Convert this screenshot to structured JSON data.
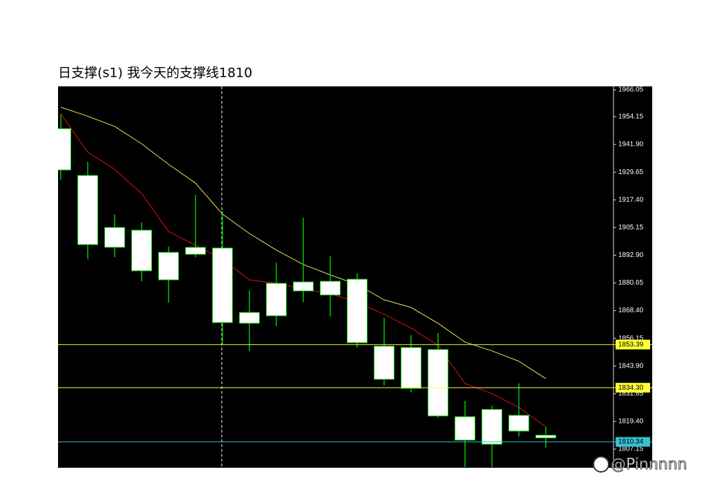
{
  "chart_data": {
    "type": "candlestick",
    "title": "日支撑(s1) 我今天的支撑线1810",
    "open": [
      1948.9,
      1928.2,
      1896.4,
      1904.0,
      1882.0,
      1893.3,
      1896.1,
      1862.8,
      1866.1,
      1877.1,
      1875.3,
      1882.3,
      1852.7,
      1852.1,
      1851.2,
      1821.5,
      1809.3,
      1822.1,
      1813.3
    ],
    "high": [
      1955.3,
      1934.3,
      1911.0,
      1907.4,
      1896.7,
      1919.6,
      1912.5,
      1877.4,
      1889.6,
      1909.5,
      1892.4,
      1885.0,
      1865.2,
      1857.6,
      1858.5,
      1828.5,
      1826.4,
      1836.2,
      1817.0
    ],
    "low": [
      1926.3,
      1891.2,
      1892.1,
      1881.4,
      1871.9,
      1892.1,
      1853.6,
      1850.5,
      1861.6,
      1872.2,
      1865.8,
      1852.0,
      1835.3,
      1832.2,
      1820.9,
      1799.2,
      1799.2,
      1812.7,
      1807.8
    ],
    "close": [
      1930.6,
      1897.6,
      1905.2,
      1886.0,
      1894.2,
      1896.4,
      1863.1,
      1867.6,
      1880.5,
      1881.1,
      1881.4,
      1854.2,
      1838.0,
      1834.0,
      1821.8,
      1811.1,
      1824.7,
      1815.1,
      1812.1
    ],
    "body_color": "#ffffff",
    "wick_color": "#00c800",
    "series": [
      {
        "color": "#e6e65a",
        "values": [
          1958.4,
          1954.4,
          1949.9,
          1942.2,
          1933.1,
          1924.8,
          1911.1,
          1902.5,
          1895.2,
          1888.8,
          1884.2,
          1879.9,
          1873.2,
          1869.8,
          1862.8,
          1854.5,
          1850.6,
          1846.0,
          1838.3
        ]
      },
      {
        "color": "#e01010",
        "values": [
          1955.4,
          1938.5,
          1930.9,
          1920.2,
          1903.4,
          1897.3,
          1891.2,
          1882.0,
          1880.5,
          1878.0,
          1875.9,
          1872.0,
          1866.8,
          1860.7,
          1853.0,
          1836.2,
          1831.7,
          1825.6,
          1817.0
        ]
      }
    ],
    "levels": [
      {
        "value": 1853.39,
        "color": "#ffff33"
      },
      {
        "value": {
          "value": 1834.3,
          "label": "1834.30"
        },
        "color": "#ffff33"
      },
      {
        "value": 1810.34,
        "color": "#33c0d0"
      }
    ],
    "ylim": [
      1798.9,
      1967.6
    ],
    "yticks": [
      1966.05,
      1954.15,
      {
        "value": 1941.9,
        "label": "1941.90"
      },
      1929.65,
      {
        "value": 1917.4,
        "label": "1917.40"
      },
      1905.15,
      {
        "value": 1892.9,
        "label": "1892.90"
      },
      1880.65,
      {
        "value": 1868.4,
        "label": "1868.40"
      },
      1856.15,
      {
        "value": 1843.9,
        "label": "1843.90"
      },
      1831.65,
      {
        "value": 1819.4,
        "label": "1819.40"
      },
      1807.15
    ]
  },
  "watermark": "@Pinnnnn"
}
